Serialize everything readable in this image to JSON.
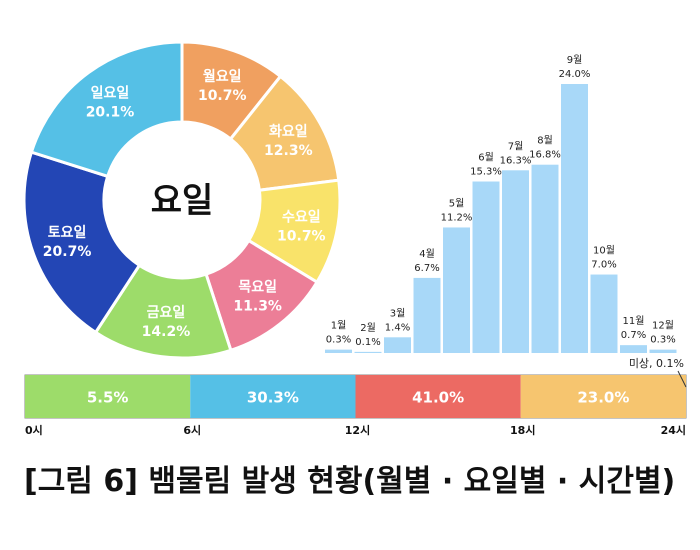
{
  "caption": "[그림 6] 뱀물림 발생 현황(월별 · 요일별 · 시간별)",
  "chart_data": [
    {
      "type": "pie",
      "title": "요일",
      "slices": [
        {
          "label": "월요일",
          "value": 10.7,
          "display": "10.7%",
          "color": "#f0a060"
        },
        {
          "label": "화요일",
          "value": 12.3,
          "display": "12.3%",
          "color": "#f6c56f"
        },
        {
          "label": "수요일",
          "value": 10.7,
          "display": "10.7%",
          "color": "#f9e36a"
        },
        {
          "label": "목요일",
          "value": 11.3,
          "display": "11.3%",
          "color": "#ec7e97"
        },
        {
          "label": "금요일",
          "value": 14.2,
          "display": "14.2%",
          "color": "#9ddc6a"
        },
        {
          "label": "토요일",
          "value": 20.7,
          "display": "20.7%",
          "color": "#2346b5"
        },
        {
          "label": "일요일",
          "value": 20.1,
          "display": "20.1%",
          "color": "#55c0e6"
        }
      ]
    },
    {
      "type": "bar",
      "categories": [
        "1월",
        "2월",
        "3월",
        "4월",
        "5월",
        "6월",
        "7월",
        "8월",
        "9월",
        "10월",
        "11월",
        "12월"
      ],
      "values": [
        0.3,
        0.1,
        1.4,
        6.7,
        11.2,
        15.3,
        16.3,
        16.8,
        24.0,
        7.0,
        0.7,
        0.3
      ],
      "value_labels": [
        "0.3%",
        "0.1%",
        "1.4%",
        "6.7%",
        "11.2%",
        "15.3%",
        "16.3%",
        "16.8%",
        "24.0%",
        "7.0%",
        "0.7%",
        "0.3%"
      ],
      "color": "#a8d8f8",
      "ylim": [
        0,
        24
      ]
    },
    {
      "type": "bar",
      "orientation": "stacked-horizontal",
      "segments": [
        {
          "start": 0,
          "end": 6,
          "value": 5.5,
          "display": "5.5%",
          "color": "#9ddc6a",
          "text_color": "#ffffff"
        },
        {
          "start": 6,
          "end": 12,
          "value": 30.3,
          "display": "30.3%",
          "color": "#55c0e6",
          "text_color": "#ffffff"
        },
        {
          "start": 12,
          "end": 18,
          "value": 41.0,
          "display": "41.0%",
          "color": "#ec6a63",
          "text_color": "#ffffff"
        },
        {
          "start": 18,
          "end": 24,
          "value": 23.0,
          "display": "23.0%",
          "color": "#f6c56f",
          "text_color": "#ffffff"
        }
      ],
      "ticks": [
        {
          "hour": 0,
          "label": "0시"
        },
        {
          "hour": 6,
          "label": "6시"
        },
        {
          "hour": 12,
          "label": "12시"
        },
        {
          "hour": 18,
          "label": "18시"
        },
        {
          "hour": 24,
          "label": "24시"
        }
      ],
      "annotation": {
        "label": "미상, 0.1%"
      }
    }
  ]
}
